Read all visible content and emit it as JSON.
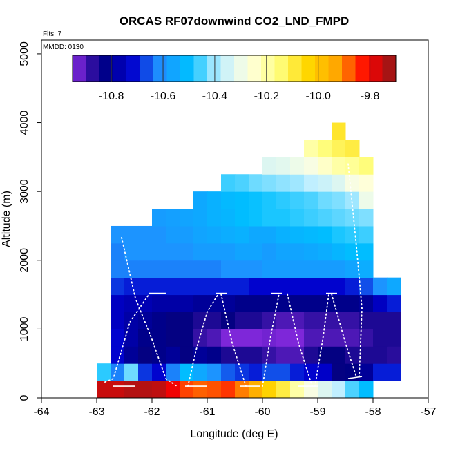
{
  "chart_data": {
    "type": "heatmap",
    "title": "ORCAS RF07downwind CO2_LND_FMPD",
    "subtitle_left": "Flts: 7",
    "annotation": "MMDD: 0130",
    "xlabel": "Longitude (deg E)",
    "ylabel": "Altitude (m)",
    "xlim": [
      -64,
      -57
    ],
    "ylim": [
      0,
      5200
    ],
    "x_ticks": [
      -64,
      -63,
      -62,
      -61,
      -60,
      -59,
      -58,
      -57
    ],
    "x_tick_labels": [
      "-64",
      "-63",
      "-62",
      "-61",
      "-60",
      "-59",
      "-58",
      "-57"
    ],
    "y_ticks": [
      0,
      1000,
      2000,
      3000,
      4000,
      5000
    ],
    "y_tick_labels": [
      "0",
      "1000",
      "2000",
      "3000",
      "4000",
      "5000"
    ],
    "colorbar": {
      "range": [
        -10.95,
        -9.7
      ],
      "ticks": [
        -10.8,
        -10.6,
        -10.4,
        -10.2,
        -10.0,
        -9.8
      ],
      "tick_labels": [
        "-10.8",
        "-10.6",
        "-10.4",
        "-10.2",
        "-10.0",
        "-9.8"
      ],
      "stops": [
        "#8a2be2",
        "#00007f",
        "#0000cd",
        "#1e90ff",
        "#00bfff",
        "#bfefff",
        "#ffffe0",
        "#ffff80",
        "#ffd700",
        "#ffa500",
        "#ff0000",
        "#8b1a1a"
      ]
    },
    "cell_width_deg": 0.25,
    "cell_height_m": 250,
    "rows": [
      {
        "alt": 0,
        "lon_start": -63.0,
        "values": [
          -9.76,
          -9.76,
          -9.74,
          -9.74,
          -9.75,
          -9.8,
          -9.86,
          -9.88,
          -9.87,
          -9.85,
          -9.9,
          -9.95,
          -10.03,
          -10.1,
          -10.2,
          -10.28,
          -10.33,
          -10.38,
          -10.45,
          -10.5
        ]
      },
      {
        "alt": 250,
        "lon_start": -63.0,
        "values": [
          -10.47,
          -10.62,
          -10.43,
          -10.68,
          -10.72,
          -10.62,
          -10.5,
          -10.55,
          -10.6,
          -10.65,
          -10.68,
          -10.7,
          -10.66,
          -10.66,
          -10.7,
          -10.72,
          -10.73,
          -10.84,
          -10.83,
          -10.8,
          -10.7,
          -10.7
        ]
      },
      {
        "alt": 500,
        "lon_start": -62.75,
        "values": [
          -10.72,
          -10.8,
          -10.84,
          -10.82,
          -10.8,
          -10.84,
          -10.8,
          -10.82,
          -10.86,
          -10.86,
          -10.86,
          -10.88,
          -10.9,
          -10.9,
          -10.86,
          -10.84,
          -10.84,
          -10.86,
          -10.86,
          -10.86,
          -10.87
        ]
      },
      {
        "alt": 750,
        "lon_start": -62.75,
        "values": [
          -10.72,
          -10.78,
          -10.82,
          -10.82,
          -10.84,
          -10.84,
          -10.88,
          -10.9,
          -10.94,
          -10.94,
          -10.94,
          -10.93,
          -10.94,
          -10.94,
          -10.9,
          -10.9,
          -10.9,
          -10.9,
          -10.88,
          -10.86,
          -10.86
        ]
      },
      {
        "alt": 1000,
        "lon_start": -62.75,
        "values": [
          -10.74,
          -10.78,
          -10.8,
          -10.82,
          -10.84,
          -10.84,
          -10.86,
          -10.86,
          -10.84,
          -10.86,
          -10.86,
          -10.88,
          -10.9,
          -10.9,
          -10.88,
          -10.88,
          -10.88,
          -10.88,
          -10.86,
          -10.86,
          -10.86
        ]
      },
      {
        "alt": 1250,
        "lon_start": -62.75,
        "values": [
          -10.74,
          -10.76,
          -10.76,
          -10.78,
          -10.78,
          -10.78,
          -10.8,
          -10.8,
          -10.8,
          -10.82,
          -10.82,
          -10.82,
          -10.82,
          -10.82,
          -10.82,
          -10.82,
          -10.82,
          -10.82,
          -10.8,
          -10.74,
          -10.7
        ]
      },
      {
        "alt": 1500,
        "lon_start": -62.75,
        "values": [
          -10.68,
          -10.7,
          -10.7,
          -10.7,
          -10.7,
          -10.7,
          -10.7,
          -10.7,
          -10.7,
          -10.7,
          -10.72,
          -10.72,
          -10.72,
          -10.72,
          -10.72,
          -10.72,
          -10.72,
          -10.7,
          -10.66,
          -10.6,
          -10.55
        ]
      },
      {
        "alt": 1750,
        "lon_start": -62.75,
        "values": [
          -10.62,
          -10.62,
          -10.62,
          -10.62,
          -10.62,
          -10.62,
          -10.62,
          -10.62,
          -10.6,
          -10.6,
          -10.6,
          -10.58,
          -10.58,
          -10.58,
          -10.58,
          -10.58,
          -10.58,
          -10.56,
          -10.54
        ]
      },
      {
        "alt": 2000,
        "lon_start": -62.75,
        "values": [
          -10.62,
          -10.6,
          -10.6,
          -10.6,
          -10.6,
          -10.6,
          -10.58,
          -10.58,
          -10.58,
          -10.56,
          -10.56,
          -10.58,
          -10.56,
          -10.56,
          -10.55,
          -10.54,
          -10.52,
          -10.5,
          -10.5
        ]
      },
      {
        "alt": 2250,
        "lon_start": -62.75,
        "values": [
          -10.6,
          -10.6,
          -10.6,
          -10.6,
          -10.58,
          -10.58,
          -10.56,
          -10.55,
          -10.54,
          -10.53,
          -10.55,
          -10.55,
          -10.53,
          -10.52,
          -10.51,
          -10.5,
          -10.48,
          -10.47,
          -10.46
        ]
      },
      {
        "alt": 2500,
        "lon_start": -62.0,
        "values": [
          -10.58,
          -10.57,
          -10.56,
          -10.55,
          -10.53,
          -10.52,
          -10.5,
          -10.49,
          -10.48,
          -10.48,
          -10.47,
          -10.46,
          -10.45,
          -10.44,
          -10.43,
          -10.42
        ]
      },
      {
        "alt": 2750,
        "lon_start": -61.25,
        "values": [
          -10.55,
          -10.53,
          -10.51,
          -10.5,
          -10.49,
          -10.48,
          -10.47,
          -10.46,
          -10.45,
          -10.43,
          -10.42,
          -10.4,
          -10.3
        ]
      },
      {
        "alt": 3000,
        "lon_start": -60.75,
        "values": [
          -10.46,
          -10.45,
          -10.43,
          -10.42,
          -10.41,
          -10.4,
          -10.38,
          -10.36,
          -10.33,
          -10.28,
          -10.26
        ]
      },
      {
        "alt": 3250,
        "lon_start": -60.0,
        "values": [
          -10.33,
          -10.32,
          -10.3,
          -10.28,
          -10.24,
          -10.2,
          -10.18,
          -10.15
        ]
      },
      {
        "alt": 3500,
        "lon_start": -59.25,
        "values": [
          -10.2,
          -10.15,
          -10.12,
          -10.1
        ]
      },
      {
        "alt": 3750,
        "lon_start": -58.75,
        "values": [
          -10.08
        ]
      }
    ],
    "flight_tracks": {
      "color": "#ffffff",
      "dotted_profiles": [
        [
          [
            -62.55,
            2330
          ],
          [
            -62.3,
            1450
          ],
          [
            -62.0,
            850
          ],
          [
            -61.75,
            280
          ],
          [
            -61.55,
            170
          ]
        ],
        [
          [
            -62.85,
            230
          ],
          [
            -62.7,
            280
          ],
          [
            -62.4,
            1100
          ],
          [
            -62.05,
            1510
          ]
        ],
        [
          [
            -61.35,
            170
          ],
          [
            -61.2,
            700
          ],
          [
            -61.0,
            1250
          ],
          [
            -60.8,
            1510
          ]
        ],
        [
          [
            -60.75,
            1510
          ],
          [
            -60.55,
            800
          ],
          [
            -60.3,
            170
          ]
        ],
        [
          [
            -60.0,
            170
          ],
          [
            -59.85,
            900
          ],
          [
            -59.7,
            1510
          ]
        ],
        [
          [
            -59.55,
            1510
          ],
          [
            -59.35,
            800
          ],
          [
            -59.1,
            170
          ]
        ],
        [
          [
            -59.05,
            170
          ],
          [
            -58.9,
            900
          ],
          [
            -58.8,
            1510
          ]
        ],
        [
          [
            -58.75,
            1510
          ],
          [
            -58.5,
            800
          ],
          [
            -58.3,
            300
          ]
        ],
        [
          [
            -58.45,
            3400
          ],
          [
            -58.3,
            2200
          ],
          [
            -58.2,
            1300
          ],
          [
            -58.25,
            300
          ]
        ]
      ],
      "level_segments": [
        [
          [
            -62.7,
            170
          ],
          [
            -62.3,
            170
          ]
        ],
        [
          [
            -62.05,
            1520
          ],
          [
            -61.75,
            1520
          ]
        ],
        [
          [
            -61.4,
            170
          ],
          [
            -61.0,
            170
          ]
        ],
        [
          [
            -60.85,
            1520
          ],
          [
            -60.65,
            1520
          ]
        ],
        [
          [
            -60.4,
            170
          ],
          [
            -60.05,
            170
          ]
        ],
        [
          [
            -59.85,
            1520
          ],
          [
            -59.65,
            1520
          ]
        ],
        [
          [
            -59.35,
            170
          ],
          [
            -59.0,
            170
          ]
        ],
        [
          [
            -58.85,
            1520
          ],
          [
            -58.65,
            1520
          ]
        ],
        [
          [
            -58.45,
            280
          ],
          [
            -58.2,
            310
          ]
        ]
      ]
    }
  }
}
